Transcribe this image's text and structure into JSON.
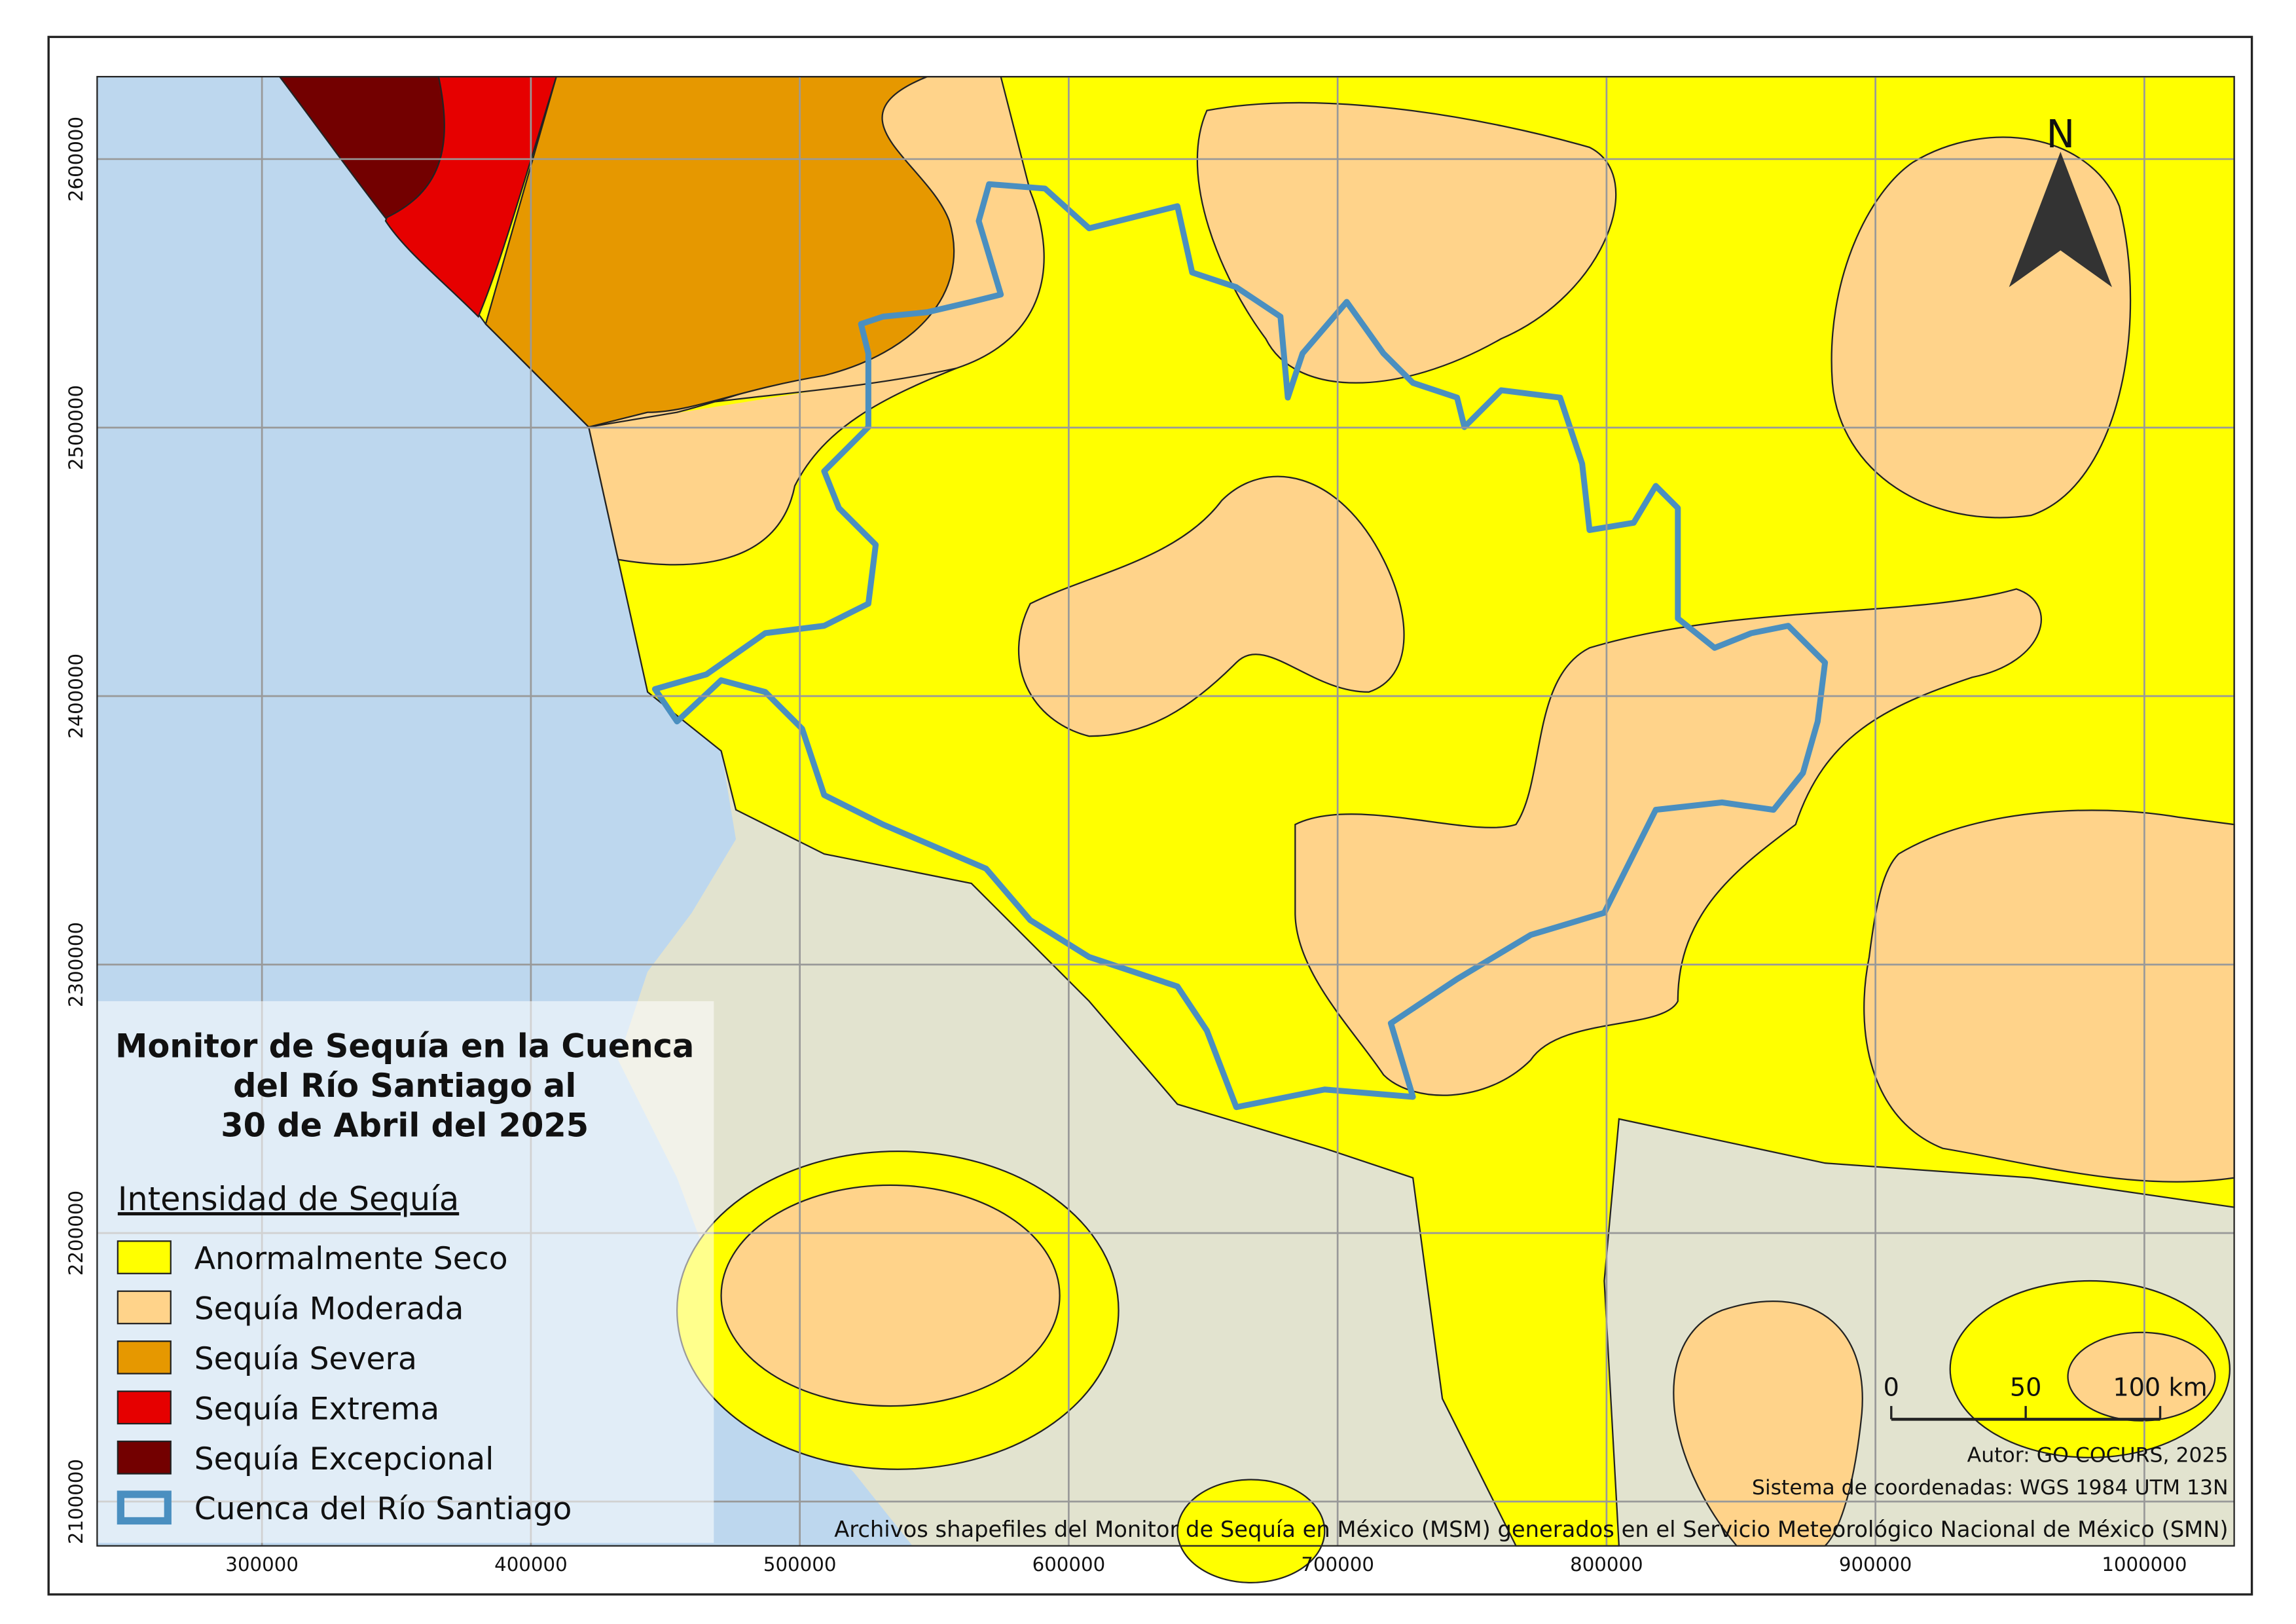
{
  "title": [
    "Monitor de Sequía en la Cuenca",
    "del Río Santiago al",
    "30 de Abril del 2025"
  ],
  "legend": {
    "title": "Intensidad de Sequía",
    "items": [
      {
        "label": "Anormalmente Seco",
        "color": "#ffff00"
      },
      {
        "label": "Sequía Moderada",
        "color": "#ffd38a"
      },
      {
        "label": "Sequía Severa",
        "color": "#e69800"
      },
      {
        "label": "Sequía Extrema",
        "color": "#e60000"
      },
      {
        "label": "Sequía Excepcional",
        "color": "#730000"
      }
    ],
    "boundary": {
      "label": "Cuenca del Río Santiago",
      "color": "#4a8fc0"
    }
  },
  "grid": {
    "xlim": [
      238700,
      1033400
    ],
    "ylim": [
      2083500,
      2630700
    ],
    "xticks": [
      300000,
      400000,
      500000,
      600000,
      700000,
      800000,
      900000,
      1000000
    ],
    "yticks": [
      2100000,
      2200000,
      2300000,
      2400000,
      2500000,
      2600000
    ]
  },
  "scale_bar": [
    0,
    50,
    {
      "value": 100,
      "label": "100 km"
    }
  ],
  "north": "N",
  "credits": [
    "Autor: GO COCURS, 2025",
    "Sistema de coordenadas: WGS 1984 UTM 13N",
    "Archivos shapefiles del Monitor de Sequía en México (MSM) generados en el Servicio Meteorológico Nacional de México (SMN)"
  ]
}
